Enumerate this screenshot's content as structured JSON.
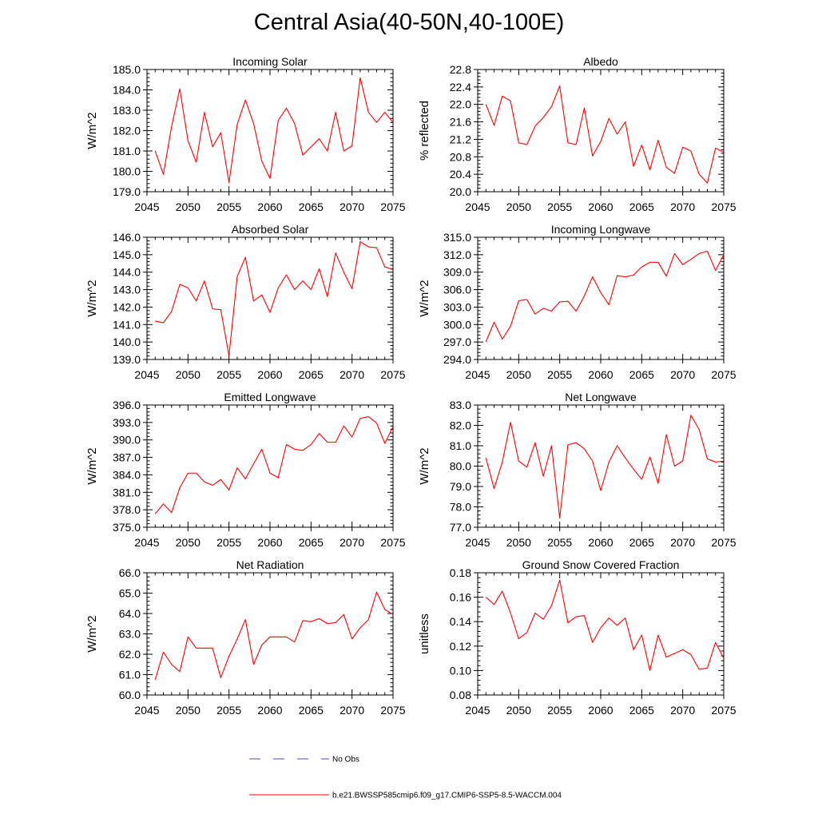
{
  "title": "Central Asia(40-50N,40-100E)",
  "colors": {
    "model": "#ff0000",
    "obs": "#4a4ac8",
    "axis": "#000000"
  },
  "legend": [
    {
      "label": "No Obs",
      "style": "dashed",
      "color_key": "obs"
    },
    {
      "label": "b.e21.BWSSP585cmip6.f09_g17.CMIP6-SSP5-8.5-WACCM.004",
      "style": "solid",
      "color_key": "model"
    }
  ],
  "chart_data": [
    {
      "type": "line",
      "title": "Incoming Solar",
      "xlabel": "",
      "ylabel": "W/m^2",
      "xlim": [
        2045,
        2075
      ],
      "ylim": [
        179,
        185
      ],
      "yticks": [
        179,
        180,
        181,
        182,
        183,
        184,
        185
      ],
      "ydec": 1,
      "xticks": [
        2045,
        2050,
        2055,
        2060,
        2065,
        2070,
        2075
      ],
      "x": [
        2046,
        2047,
        2048,
        2049,
        2050,
        2051,
        2052,
        2053,
        2054,
        2055,
        2056,
        2057,
        2058,
        2059,
        2060,
        2061,
        2062,
        2063,
        2064,
        2065,
        2066,
        2067,
        2068,
        2069,
        2070,
        2071,
        2072,
        2073,
        2074,
        2075
      ],
      "series": [
        {
          "name": "b.e21.BWSSP585cmip6.f09_g17.CMIP6-SSP5-8.5-WACCM.004",
          "values": [
            181.0,
            179.85,
            182.2,
            184.05,
            181.5,
            180.45,
            182.9,
            181.2,
            181.9,
            179.45,
            182.3,
            183.5,
            182.35,
            180.5,
            179.65,
            182.5,
            183.1,
            182.35,
            180.8,
            181.2,
            181.6,
            181.0,
            182.9,
            181.0,
            181.25,
            184.6,
            182.9,
            182.4,
            182.9,
            182.4
          ]
        }
      ]
    },
    {
      "type": "line",
      "title": "Albedo",
      "xlabel": "",
      "ylabel": "% reflected",
      "xlim": [
        2045,
        2075
      ],
      "ylim": [
        20.0,
        22.8
      ],
      "yticks": [
        20.0,
        20.4,
        20.8,
        21.2,
        21.6,
        22.0,
        22.4,
        22.8
      ],
      "ydec": 1,
      "xticks": [
        2045,
        2050,
        2055,
        2060,
        2065,
        2070,
        2075
      ],
      "x": [
        2046,
        2047,
        2048,
        2049,
        2050,
        2051,
        2052,
        2053,
        2054,
        2055,
        2056,
        2057,
        2058,
        2059,
        2060,
        2061,
        2062,
        2063,
        2064,
        2065,
        2066,
        2067,
        2068,
        2069,
        2070,
        2071,
        2072,
        2073,
        2074,
        2075
      ],
      "series": [
        {
          "name": "b.e21.BWSSP585cmip6.f09_g17.CMIP6-SSP5-8.5-WACCM.004",
          "values": [
            22.0,
            21.52,
            22.19,
            22.08,
            21.12,
            21.08,
            21.5,
            21.7,
            21.95,
            22.42,
            21.12,
            21.08,
            21.92,
            20.82,
            21.15,
            21.68,
            21.32,
            21.6,
            20.58,
            21.07,
            20.5,
            21.18,
            20.56,
            20.42,
            21.02,
            20.93,
            20.4,
            20.2,
            21.0,
            20.9
          ]
        }
      ]
    },
    {
      "type": "line",
      "title": "Absorbed Solar",
      "xlabel": "",
      "ylabel": "W/m^2",
      "xlim": [
        2045,
        2075
      ],
      "ylim": [
        139,
        146
      ],
      "yticks": [
        139,
        140,
        141,
        142,
        143,
        144,
        145,
        146
      ],
      "ydec": 1,
      "xticks": [
        2045,
        2050,
        2055,
        2060,
        2065,
        2070,
        2075
      ],
      "x": [
        2046,
        2047,
        2048,
        2049,
        2050,
        2051,
        2052,
        2053,
        2054,
        2055,
        2056,
        2057,
        2058,
        2059,
        2060,
        2061,
        2062,
        2063,
        2064,
        2065,
        2066,
        2067,
        2068,
        2069,
        2070,
        2071,
        2072,
        2073,
        2074,
        2075
      ],
      "series": [
        {
          "name": "b.e21.BWSSP585cmip6.f09_g17.CMIP6-SSP5-8.5-WACCM.004",
          "values": [
            141.2,
            141.1,
            141.75,
            143.3,
            143.1,
            142.35,
            143.5,
            141.9,
            141.85,
            139.2,
            143.75,
            144.85,
            142.35,
            142.7,
            141.7,
            143.1,
            143.85,
            143.0,
            143.5,
            143.0,
            144.2,
            142.6,
            145.1,
            144.0,
            143.05,
            145.75,
            145.45,
            145.4,
            144.3,
            144.15
          ]
        }
      ]
    },
    {
      "type": "line",
      "title": "Incoming Longwave",
      "xlabel": "",
      "ylabel": "W/m^2",
      "xlim": [
        2045,
        2075
      ],
      "ylim": [
        294,
        315
      ],
      "yticks": [
        294,
        297,
        300,
        303,
        306,
        309,
        312,
        315
      ],
      "ydec": 1,
      "xticks": [
        2045,
        2050,
        2055,
        2060,
        2065,
        2070,
        2075
      ],
      "x": [
        2046,
        2047,
        2048,
        2049,
        2050,
        2051,
        2052,
        2053,
        2054,
        2055,
        2056,
        2057,
        2058,
        2059,
        2060,
        2061,
        2062,
        2063,
        2064,
        2065,
        2066,
        2067,
        2068,
        2069,
        2070,
        2071,
        2072,
        2073,
        2074,
        2075
      ],
      "series": [
        {
          "name": "b.e21.BWSSP585cmip6.f09_g17.CMIP6-SSP5-8.5-WACCM.004",
          "values": [
            297.0,
            300.4,
            297.5,
            299.7,
            304.1,
            304.3,
            301.8,
            302.8,
            302.3,
            303.9,
            304.0,
            302.3,
            304.9,
            308.2,
            305.5,
            303.4,
            308.4,
            308.2,
            308.5,
            309.9,
            310.7,
            310.7,
            308.3,
            312.2,
            310.3,
            311.2,
            312.2,
            312.6,
            309.3,
            312.0
          ]
        }
      ]
    },
    {
      "type": "line",
      "title": "Emitted Longwave",
      "xlabel": "",
      "ylabel": "W/m^2",
      "xlim": [
        2045,
        2075
      ],
      "ylim": [
        375,
        396
      ],
      "yticks": [
        375,
        378,
        381,
        384,
        387,
        390,
        393,
        396
      ],
      "ydec": 1,
      "xticks": [
        2045,
        2050,
        2055,
        2060,
        2065,
        2070,
        2075
      ],
      "x": [
        2046,
        2047,
        2048,
        2049,
        2050,
        2051,
        2052,
        2053,
        2054,
        2055,
        2056,
        2057,
        2058,
        2059,
        2060,
        2061,
        2062,
        2063,
        2064,
        2065,
        2066,
        2067,
        2068,
        2069,
        2070,
        2071,
        2072,
        2073,
        2074,
        2075
      ],
      "series": [
        {
          "name": "b.e21.BWSSP585cmip6.f09_g17.CMIP6-SSP5-8.5-WACCM.004",
          "values": [
            377.3,
            379.0,
            377.5,
            381.8,
            384.3,
            384.3,
            382.8,
            382.2,
            383.2,
            381.4,
            385.2,
            383.3,
            385.9,
            388.4,
            384.3,
            383.5,
            389.2,
            388.4,
            388.2,
            389.2,
            391.1,
            389.6,
            389.6,
            392.4,
            390.5,
            393.7,
            394.0,
            392.9,
            389.4,
            392.3
          ]
        }
      ]
    },
    {
      "type": "line",
      "title": "Net Longwave",
      "xlabel": "",
      "ylabel": "W/m^2",
      "xlim": [
        2045,
        2075
      ],
      "ylim": [
        77,
        83
      ],
      "yticks": [
        77,
        78,
        79,
        80,
        81,
        82,
        83
      ],
      "ydec": 1,
      "xticks": [
        2045,
        2050,
        2055,
        2060,
        2065,
        2070,
        2075
      ],
      "x": [
        2046,
        2047,
        2048,
        2049,
        2050,
        2051,
        2052,
        2053,
        2054,
        2055,
        2056,
        2057,
        2058,
        2059,
        2060,
        2061,
        2062,
        2063,
        2064,
        2065,
        2066,
        2067,
        2068,
        2069,
        2070,
        2071,
        2072,
        2073,
        2074,
        2075
      ],
      "series": [
        {
          "name": "b.e21.BWSSP585cmip6.f09_g17.CMIP6-SSP5-8.5-WACCM.004",
          "values": [
            80.4,
            78.9,
            80.2,
            82.15,
            80.25,
            79.95,
            81.15,
            79.5,
            81.0,
            77.45,
            81.05,
            81.15,
            80.85,
            80.25,
            78.8,
            80.2,
            81.0,
            80.4,
            79.85,
            79.35,
            80.45,
            79.15,
            81.55,
            80.0,
            80.25,
            82.5,
            81.8,
            80.35,
            80.2,
            80.25
          ]
        }
      ]
    },
    {
      "type": "line",
      "title": "Net Radiation",
      "xlabel": "",
      "ylabel": "W/m^2",
      "xlim": [
        2045,
        2075
      ],
      "ylim": [
        60,
        66
      ],
      "yticks": [
        60,
        61,
        62,
        63,
        64,
        65,
        66
      ],
      "ydec": 1,
      "xticks": [
        2045,
        2050,
        2055,
        2060,
        2065,
        2070,
        2075
      ],
      "x": [
        2046,
        2047,
        2048,
        2049,
        2050,
        2051,
        2052,
        2053,
        2054,
        2055,
        2056,
        2057,
        2058,
        2059,
        2060,
        2061,
        2062,
        2063,
        2064,
        2065,
        2066,
        2067,
        2068,
        2069,
        2070,
        2071,
        2072,
        2073,
        2074,
        2075
      ],
      "series": [
        {
          "name": "b.e21.BWSSP585cmip6.f09_g17.CMIP6-SSP5-8.5-WACCM.004",
          "values": [
            60.75,
            62.1,
            61.5,
            61.15,
            62.85,
            62.3,
            62.3,
            62.3,
            60.85,
            61.9,
            62.75,
            63.7,
            61.5,
            62.45,
            62.85,
            62.85,
            62.85,
            62.6,
            63.65,
            63.6,
            63.75,
            63.5,
            63.55,
            63.95,
            62.75,
            63.3,
            63.7,
            65.05,
            64.2,
            63.95
          ]
        }
      ]
    },
    {
      "type": "line",
      "title": "Ground Snow Covered Fraction",
      "xlabel": "",
      "ylabel": "unitless",
      "xlim": [
        2045,
        2075
      ],
      "ylim": [
        0.08,
        0.18
      ],
      "yticks": [
        0.08,
        0.1,
        0.12,
        0.14,
        0.16,
        0.18
      ],
      "ydec": 2,
      "xticks": [
        2045,
        2050,
        2055,
        2060,
        2065,
        2070,
        2075
      ],
      "x": [
        2046,
        2047,
        2048,
        2049,
        2050,
        2051,
        2052,
        2053,
        2054,
        2055,
        2056,
        2057,
        2058,
        2059,
        2060,
        2061,
        2062,
        2063,
        2064,
        2065,
        2066,
        2067,
        2068,
        2069,
        2070,
        2071,
        2072,
        2073,
        2074,
        2075
      ],
      "series": [
        {
          "name": "b.e21.BWSSP585cmip6.f09_g17.CMIP6-SSP5-8.5-WACCM.004",
          "values": [
            0.16,
            0.154,
            0.165,
            0.147,
            0.126,
            0.131,
            0.147,
            0.142,
            0.153,
            0.174,
            0.139,
            0.144,
            0.145,
            0.123,
            0.135,
            0.143,
            0.137,
            0.143,
            0.117,
            0.129,
            0.1,
            0.129,
            0.111,
            0.114,
            0.117,
            0.113,
            0.101,
            0.102,
            0.123,
            0.11
          ]
        }
      ]
    }
  ]
}
